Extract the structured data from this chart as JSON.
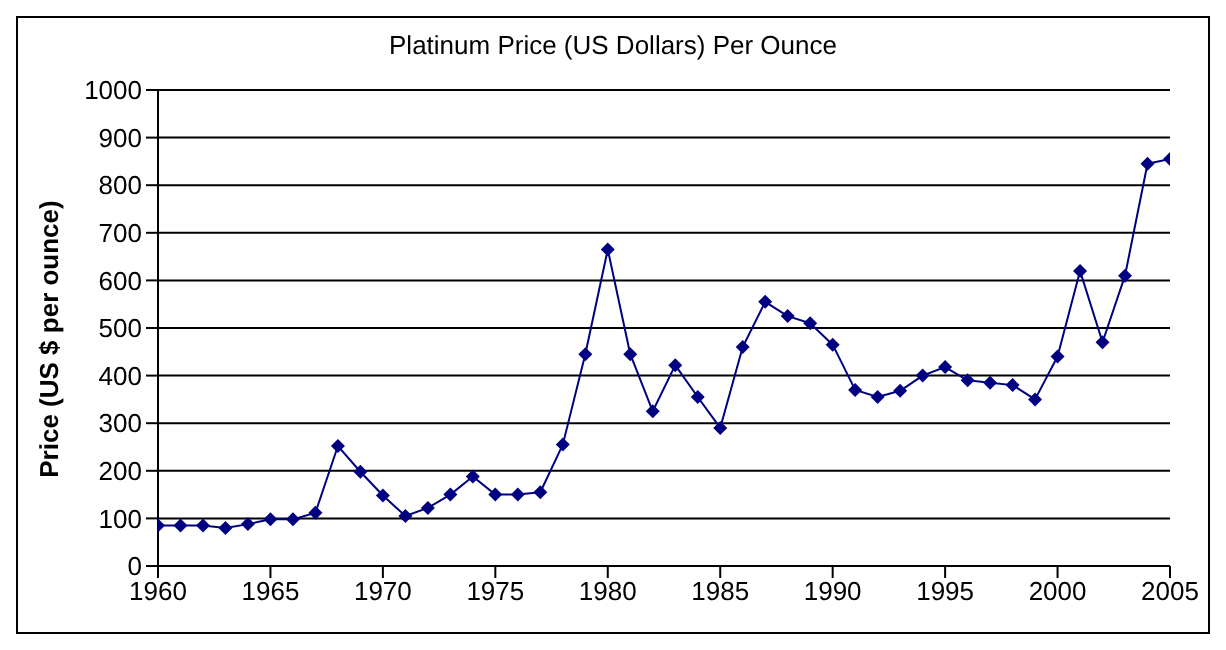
{
  "chart_data": {
    "type": "line",
    "title": "Platinum Price (US Dollars) Per Ounce",
    "ylabel": "Price (US $ per ounce)",
    "x": [
      1960,
      1961,
      1962,
      1963,
      1964,
      1965,
      1966,
      1967,
      1968,
      1969,
      1970,
      1971,
      1972,
      1973,
      1974,
      1975,
      1976,
      1977,
      1978,
      1979,
      1980,
      1981,
      1982,
      1983,
      1984,
      1985,
      1986,
      1987,
      1988,
      1989,
      1990,
      1991,
      1992,
      1993,
      1994,
      1995,
      1996,
      1997,
      1998,
      1999,
      2000,
      2001,
      2002,
      2003,
      2004,
      2005
    ],
    "series": [
      {
        "color": "#000080",
        "values": [
          85,
          85,
          85,
          80,
          88,
          98,
          98,
          112,
          252,
          198,
          148,
          105,
          122,
          150,
          188,
          150,
          150,
          155,
          255,
          445,
          665,
          445,
          325,
          422,
          355,
          290,
          460,
          555,
          525,
          510,
          465,
          370,
          355,
          368,
          400,
          418,
          390,
          385,
          380,
          350,
          440,
          620,
          470,
          610,
          845,
          855
        ]
      }
    ],
    "xlim": [
      1960,
      2005
    ],
    "xticks": [
      1960,
      1965,
      1970,
      1975,
      1980,
      1985,
      1990,
      1995,
      2000,
      2005
    ],
    "ylim": [
      0,
      1000
    ],
    "yticks": [
      0,
      100,
      200,
      300,
      400,
      500,
      600,
      700,
      800,
      900,
      1000
    ],
    "grid": "y",
    "legend": false,
    "marker": "diamond",
    "line_style": "solid"
  }
}
